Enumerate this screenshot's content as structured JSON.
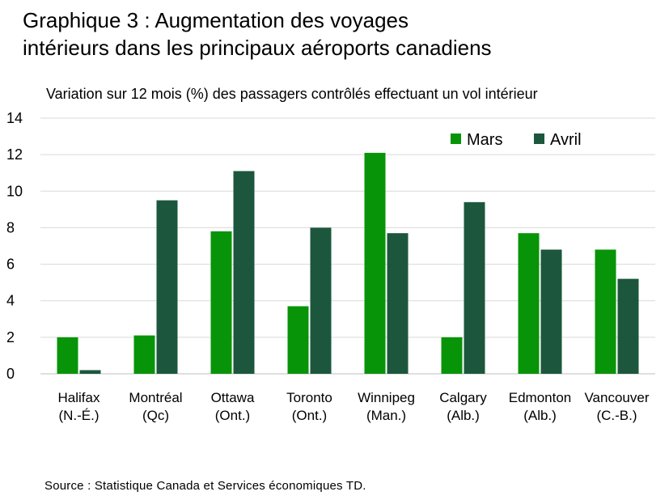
{
  "title_line1": "Graphique 3 : Augmentation des voyages",
  "title_line2": "intérieurs dans les principaux aéroports canadiens",
  "source": "Source : Statistique Canada et Services économiques TD.",
  "colors": {
    "mars": "#089408",
    "avril": "#1c573d",
    "grid": "#d9d9d9"
  },
  "chart_data": {
    "type": "bar",
    "subtitle": "Variation sur 12 mois (%) des passagers contrôlés effectuant un vol intérieur",
    "categories": [
      [
        "Halifax",
        "(N.-É.)"
      ],
      [
        "Montréal",
        "(Qc)"
      ],
      [
        "Ottawa",
        "(Ont.)"
      ],
      [
        "Toronto",
        "(Ont.)"
      ],
      [
        "Winnipeg",
        "(Man.)"
      ],
      [
        "Calgary",
        "(Alb.)"
      ],
      [
        "Edmonton",
        "(Alb.)"
      ],
      [
        "Vancouver",
        "(C.-B.)"
      ]
    ],
    "series": [
      {
        "name": "Mars",
        "values": [
          2.0,
          2.1,
          7.8,
          3.7,
          12.1,
          2.0,
          7.7,
          6.8
        ]
      },
      {
        "name": "Avril",
        "values": [
          0.2,
          9.5,
          11.1,
          8.0,
          7.7,
          9.4,
          6.8,
          5.2
        ]
      }
    ],
    "ylim": [
      0,
      14
    ],
    "yticks": [
      0,
      2,
      4,
      6,
      8,
      10,
      12,
      14
    ],
    "grid": true,
    "legend": "top-right"
  }
}
